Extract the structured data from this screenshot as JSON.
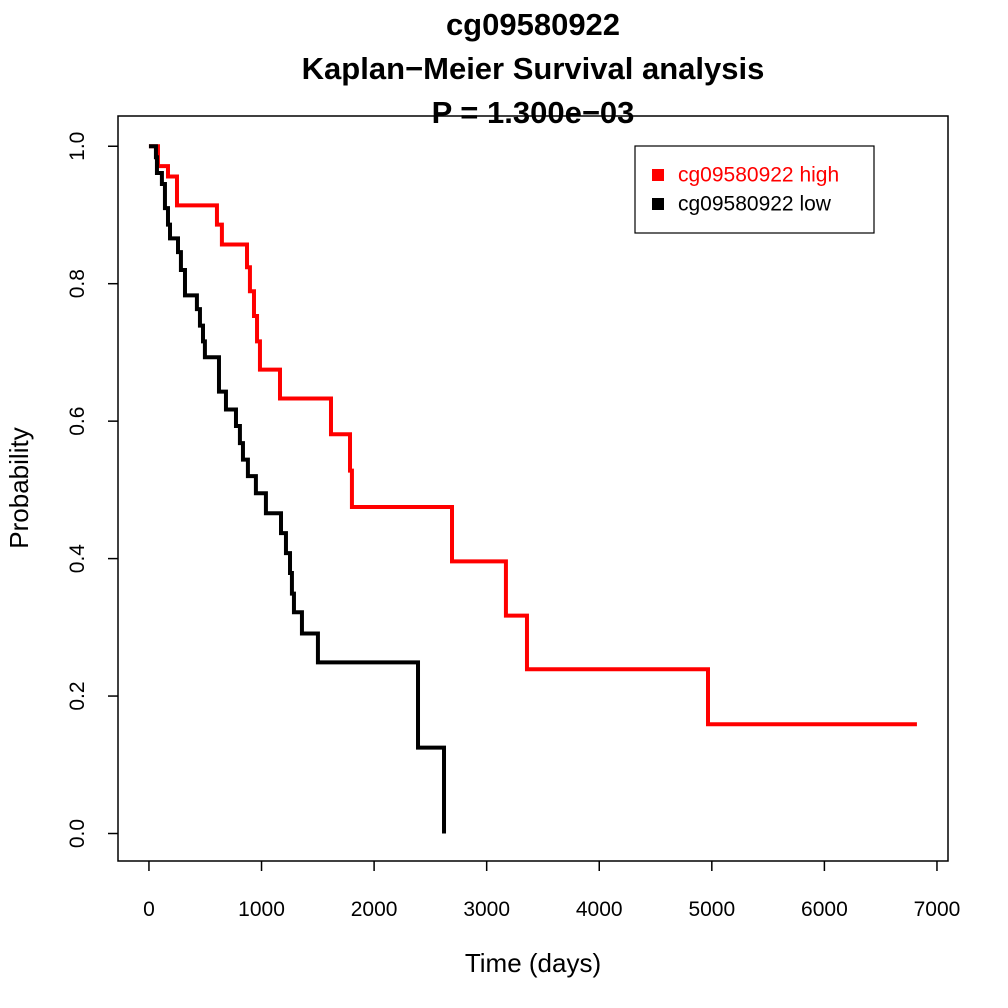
{
  "chart_data": {
    "type": "line",
    "title": [
      "cg09580922",
      "Kaplan−Meier Survival analysis",
      "P = 1.300e−03"
    ],
    "xlabel": "Time (days)",
    "ylabel": "Probability",
    "xlim": [
      -275,
      7098
    ],
    "ylim": [
      -0.04,
      1.044
    ],
    "xticks": [
      0,
      1000,
      2000,
      3000,
      4000,
      5000,
      6000,
      7000
    ],
    "yticks": [
      {
        "value": 0,
        "label": "0.0"
      },
      0.2,
      0.4,
      0.6,
      0.8,
      {
        "value": 1,
        "label": "1.0"
      }
    ],
    "legend": "top-right",
    "series": [
      {
        "name": "cg09580922 high",
        "color": "#ff0000",
        "x": [
          0,
          80,
          169,
          249,
          604,
          648,
          871,
          897,
          933,
          960,
          986,
          1164,
          1617,
          1786,
          1803,
          2692,
          3171,
          3358,
          4966,
          6822
        ],
        "values": [
          1,
          0.971,
          0.956,
          0.914,
          0.886,
          0.857,
          0.824,
          0.789,
          0.753,
          0.716,
          0.675,
          0.633,
          0.581,
          0.528,
          0.475,
          0.396,
          0.317,
          0.239,
          0.159,
          0.159
        ]
      },
      {
        "name": "cg09580922 low",
        "color": "#000000",
        "x": [
          0,
          62,
          71,
          115,
          142,
          169,
          187,
          258,
          284,
          320,
          426,
          453,
          480,
          497,
          622,
          684,
          773,
          808,
          835,
          879,
          950,
          1039,
          1173,
          1217,
          1253,
          1270,
          1288,
          1359,
          1501,
          2390,
          2621
        ],
        "values": [
          1,
          0.984,
          0.961,
          0.945,
          0.91,
          0.886,
          0.866,
          0.846,
          0.82,
          0.783,
          0.763,
          0.739,
          0.716,
          0.693,
          0.643,
          0.617,
          0.593,
          0.568,
          0.544,
          0.52,
          0.495,
          0.466,
          0.437,
          0.408,
          0.379,
          0.349,
          0.322,
          0.291,
          0.249,
          0.125,
          0
        ]
      }
    ]
  }
}
